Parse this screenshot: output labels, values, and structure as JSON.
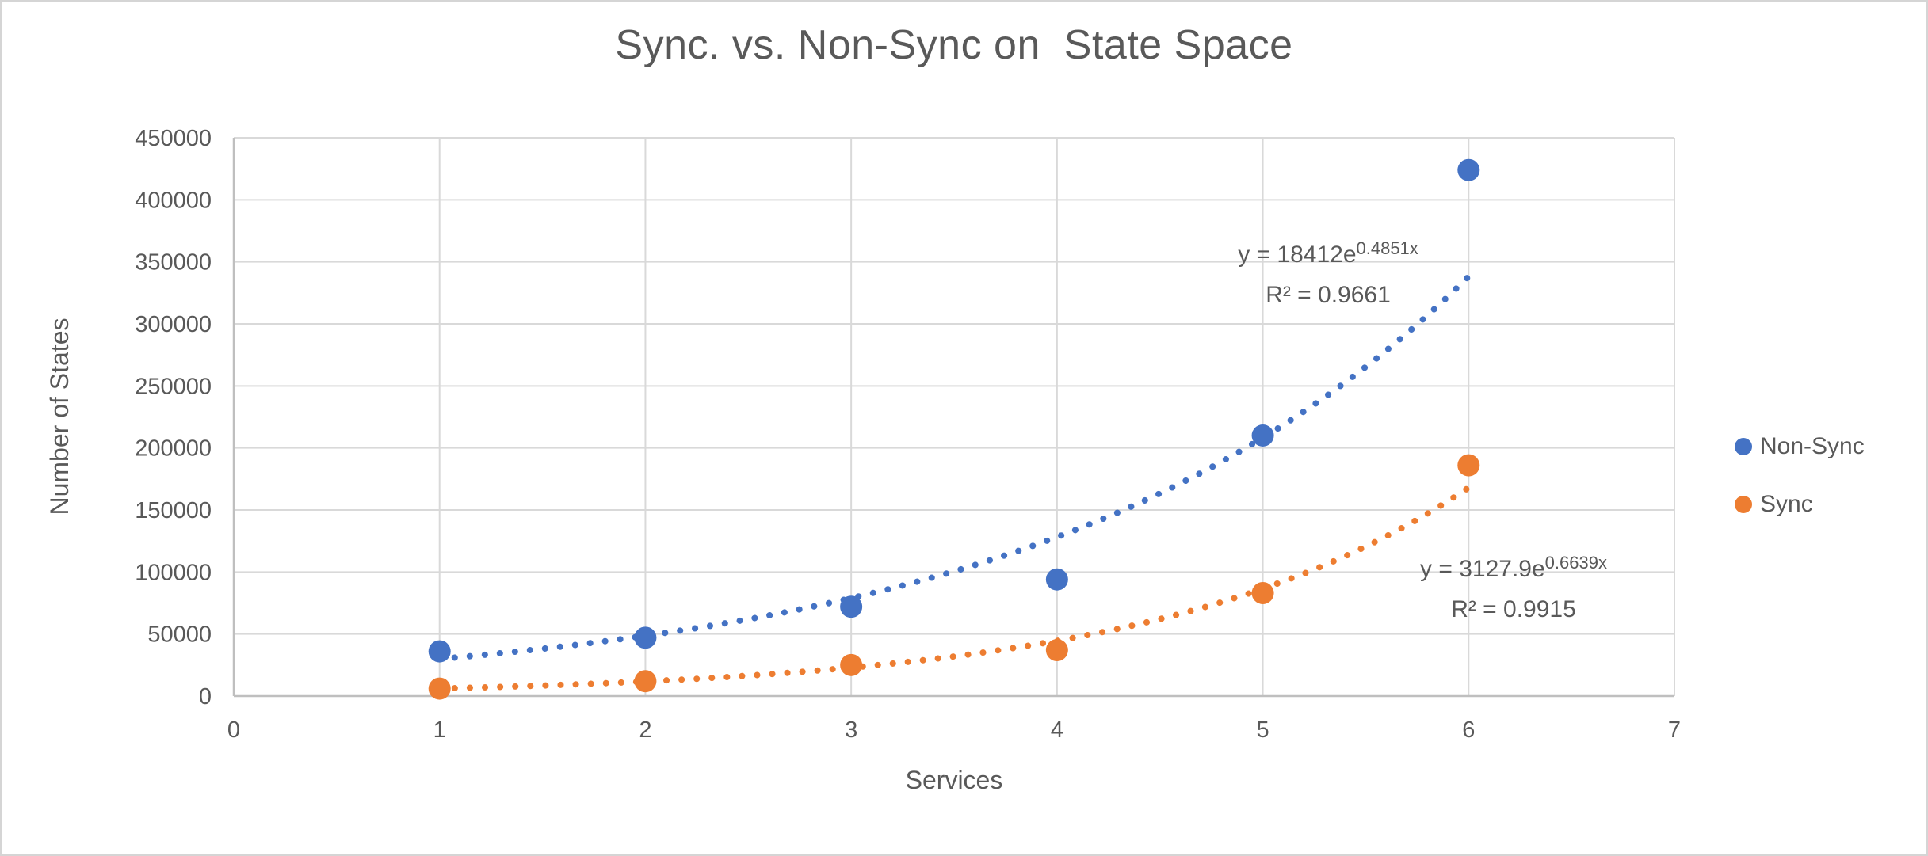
{
  "window": {
    "background": "#FFFFFF",
    "border_color": "#D5D5D5"
  },
  "chart_data": {
    "type": "scatter",
    "title": "Sync. vs. Non-Sync on  State Space",
    "xlabel": "Services",
    "ylabel": "Number of States",
    "x_range": [
      0,
      7
    ],
    "y_range": [
      0,
      450000
    ],
    "x_ticks": [
      0,
      1,
      2,
      3,
      4,
      5,
      6,
      7
    ],
    "y_ticks": [
      0,
      50000,
      100000,
      150000,
      200000,
      250000,
      300000,
      350000,
      400000,
      450000
    ],
    "grid": true,
    "legend_position": "right",
    "text_color": "#595959",
    "gridline_color": "#D9D9D9",
    "axis_color": "#BFBFBF",
    "series": [
      {
        "name": "Non-Sync",
        "color": "#4472C4",
        "marker": "circle",
        "x": [
          1,
          2,
          3,
          4,
          5,
          6
        ],
        "y": [
          36000,
          47000,
          72000,
          94000,
          210000,
          424000
        ],
        "trendline": {
          "type": "exponential",
          "style": "dotted",
          "coef": 18412,
          "exp_coef": 0.4851,
          "label_base": "y = 18412e",
          "label_exponent": "0.4851x",
          "r2": "R² = 0.9661"
        }
      },
      {
        "name": "Sync",
        "color": "#ED7D31",
        "marker": "circle",
        "x": [
          1,
          2,
          3,
          4,
          5,
          6
        ],
        "y": [
          6000,
          12000,
          25000,
          37000,
          83000,
          186000
        ],
        "trendline": {
          "type": "exponential",
          "style": "dotted",
          "coef": 3127.9,
          "exp_coef": 0.6639,
          "label_base": "y = 3127.9e",
          "label_exponent": "0.6639x",
          "r2": "R² = 0.9915"
        }
      }
    ]
  }
}
